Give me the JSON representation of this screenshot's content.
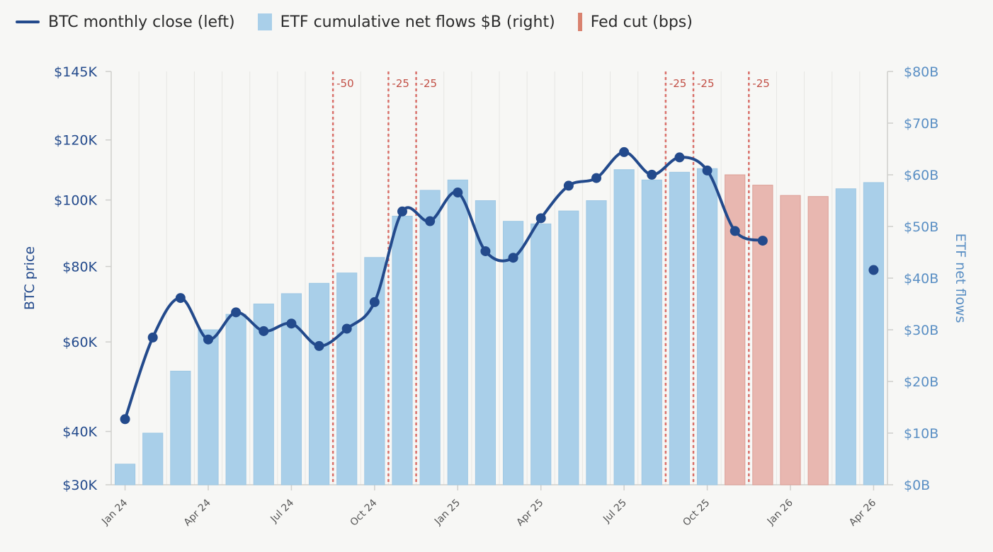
{
  "legend": [
    {
      "label": "BTC monthly close (left)",
      "swatch": "line",
      "color": "#234a8c"
    },
    {
      "label": "ETF cumulative net flows $B (right)",
      "swatch": "box",
      "color": "#a9cfe9"
    },
    {
      "label": "Fed cut (bps)",
      "swatch": "bar",
      "color": "#d9826f"
    }
  ],
  "chart_data": {
    "type": "bar+line",
    "x_months": [
      "Jan 24",
      "Feb 24",
      "Mar 24",
      "Apr 24",
      "May 24",
      "Jun 24",
      "Jul 24",
      "Aug 24",
      "Sep 24",
      "Oct 24",
      "Nov 24",
      "Dec 24",
      "Jan 25",
      "Feb 25",
      "Mar 25",
      "Apr 25",
      "May 25",
      "Jun 25",
      "Jul 25",
      "Aug 25",
      "Sep 25",
      "Oct 25",
      "Nov 25",
      "Dec 25",
      "Jan 26",
      "Feb 26",
      "Mar 26",
      "Apr 26"
    ],
    "x_tick_labels": [
      "Jan 24",
      "Apr 24",
      "Jul 24",
      "Oct 24",
      "Jan 25",
      "Apr 25",
      "Jul 25",
      "Oct 25",
      "Jan 26",
      "Apr 26"
    ],
    "left_axis": {
      "label": "BTC price",
      "ticks": [
        30000,
        40000,
        60000,
        80000,
        100000,
        120000,
        145000
      ],
      "tick_labels": [
        "$30K",
        "$40K",
        "$60K",
        "$80K",
        "$100K",
        "$120K",
        "$145K"
      ],
      "scale": "sqrt",
      "range": [
        30000,
        145000
      ]
    },
    "right_axis": {
      "label": "ETF net flows",
      "ticks": [
        0,
        10,
        20,
        30,
        40,
        50,
        60,
        70,
        80
      ],
      "tick_labels": [
        "$0B",
        "$10B",
        "$20B",
        "$30B",
        "$40B",
        "$50B",
        "$60B",
        "$70B",
        "$80B"
      ],
      "range": [
        0,
        80
      ]
    },
    "series": [
      {
        "name": "BTC monthly close (left)",
        "type": "line",
        "color": "#234a8c",
        "values": [
          42500,
          61100,
          71300,
          60600,
          67500,
          62700,
          64600,
          59000,
          63300,
          70200,
          96400,
          93400,
          102400,
          84400,
          82500,
          94300,
          104600,
          107100,
          115800,
          108200,
          114000,
          109600,
          90400,
          87500,
          null,
          null,
          null,
          79000
        ],
        "connected_until": "Dec 25"
      },
      {
        "name": "ETF cumulative net flows $B (right)",
        "type": "bar",
        "values": [
          4.0,
          10.0,
          22.0,
          30.0,
          33.0,
          35.0,
          37.0,
          39.0,
          41.0,
          44.0,
          52.0,
          57.0,
          59.0,
          55.0,
          51.0,
          50.5,
          53.0,
          55.0,
          61.0,
          59.0,
          60.5,
          61.2,
          60.0,
          58.0,
          56.0,
          55.8,
          57.3,
          58.5
        ],
        "colors": [
          "#a9cfe9",
          "#a9cfe9",
          "#a9cfe9",
          "#a9cfe9",
          "#a9cfe9",
          "#a9cfe9",
          "#a9cfe9",
          "#a9cfe9",
          "#a9cfe9",
          "#a9cfe9",
          "#a9cfe9",
          "#a9cfe9",
          "#a9cfe9",
          "#a9cfe9",
          "#a9cfe9",
          "#a9cfe9",
          "#a9cfe9",
          "#a9cfe9",
          "#a9cfe9",
          "#a9cfe9",
          "#a9cfe9",
          "#a9cfe9",
          "#e8b7b0",
          "#e8b7b0",
          "#e8b7b0",
          "#e8b7b0",
          "#a9cfe9",
          "#a9cfe9"
        ]
      }
    ],
    "fed_cuts": [
      {
        "x": 8.0,
        "label": "-50"
      },
      {
        "x": 10.0,
        "label": "-25"
      },
      {
        "x": 11.0,
        "label": "-25"
      },
      {
        "x": 20.0,
        "label": "-25"
      },
      {
        "x": 21.0,
        "label": "-25"
      },
      {
        "x": 23.0,
        "label": "-25"
      }
    ],
    "grid": true,
    "legend_position": "top-left"
  }
}
